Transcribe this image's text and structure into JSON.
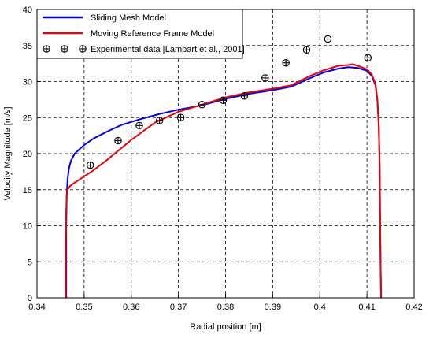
{
  "chart_data": {
    "type": "line",
    "title": "",
    "xlabel": "Radial position [m]",
    "ylabel": "Velocity Magnitude [m/s]",
    "xlim": [
      0.34,
      0.42
    ],
    "ylim": [
      0,
      40
    ],
    "x_ticks": [
      0.34,
      0.35,
      0.36,
      0.37,
      0.38,
      0.39,
      0.4,
      0.41,
      0.42
    ],
    "x_tick_labels": [
      "0.34",
      "0.35",
      "0.36",
      "0.37",
      "0.38",
      "0.39",
      "0.4",
      "0.41",
      "0.42"
    ],
    "y_ticks": [
      0,
      5,
      10,
      15,
      20,
      25,
      30,
      35,
      40
    ],
    "y_tick_labels": [
      "0",
      "5",
      "10",
      "15",
      "20",
      "25",
      "30",
      "35",
      "40"
    ],
    "grid": true,
    "legend_position": "top-left",
    "series": [
      {
        "name": "Sliding Mesh Model",
        "kind": "line",
        "color": "#0000ee",
        "x": [
          0.3462,
          0.3462,
          0.3463,
          0.3465,
          0.3468,
          0.3472,
          0.348,
          0.35,
          0.352,
          0.355,
          0.358,
          0.362,
          0.366,
          0.37,
          0.375,
          0.38,
          0.385,
          0.39,
          0.394,
          0.398,
          0.401,
          0.404,
          0.406,
          0.408,
          0.41,
          0.411,
          0.4118,
          0.4122,
          0.4125,
          0.4127,
          0.4128,
          0.4129,
          0.413
        ],
        "y": [
          0,
          10,
          14,
          16.5,
          18,
          19,
          20,
          21.2,
          22.1,
          23.1,
          24,
          24.8,
          25.5,
          26.1,
          26.7,
          27.6,
          28.3,
          28.8,
          29.3,
          30.5,
          31.3,
          31.8,
          32,
          31.9,
          31.5,
          30.8,
          29.5,
          27.5,
          24,
          18,
          10,
          4,
          0
        ]
      },
      {
        "name": "Moving Reference Frame Model",
        "kind": "line",
        "color": "#ee0000",
        "x": [
          0.3461,
          0.3461,
          0.3462,
          0.3463,
          0.3465,
          0.347,
          0.3478,
          0.349,
          0.352,
          0.355,
          0.36,
          0.365,
          0.37,
          0.375,
          0.38,
          0.385,
          0.39,
          0.394,
          0.398,
          0.401,
          0.404,
          0.406,
          0.407,
          0.408,
          0.41,
          0.411,
          0.4118,
          0.4122,
          0.4125,
          0.4127,
          0.4128,
          0.4129,
          0.413
        ],
        "y": [
          0,
          8,
          12,
          14.2,
          15,
          15.5,
          15.9,
          16.4,
          17.7,
          19.2,
          21.9,
          24.3,
          25.8,
          26.8,
          27.8,
          28.5,
          29,
          29.5,
          30.8,
          31.6,
          32.2,
          32.3,
          32.4,
          32.2,
          31.7,
          31,
          29.7,
          27.5,
          24,
          18,
          10,
          4,
          0
        ]
      },
      {
        "name": "Experimental data [Lampart et al., 2001]",
        "kind": "scatter",
        "color": "#000000",
        "x": [
          0.3513,
          0.3572,
          0.3617,
          0.366,
          0.3705,
          0.375,
          0.3795,
          0.384,
          0.3884,
          0.3928,
          0.3972,
          0.4017,
          0.4102
        ],
        "y": [
          18.4,
          21.8,
          23.9,
          24.6,
          25,
          26.8,
          27.4,
          28,
          30.5,
          32.6,
          34.4,
          35.9,
          33.3
        ]
      }
    ]
  }
}
